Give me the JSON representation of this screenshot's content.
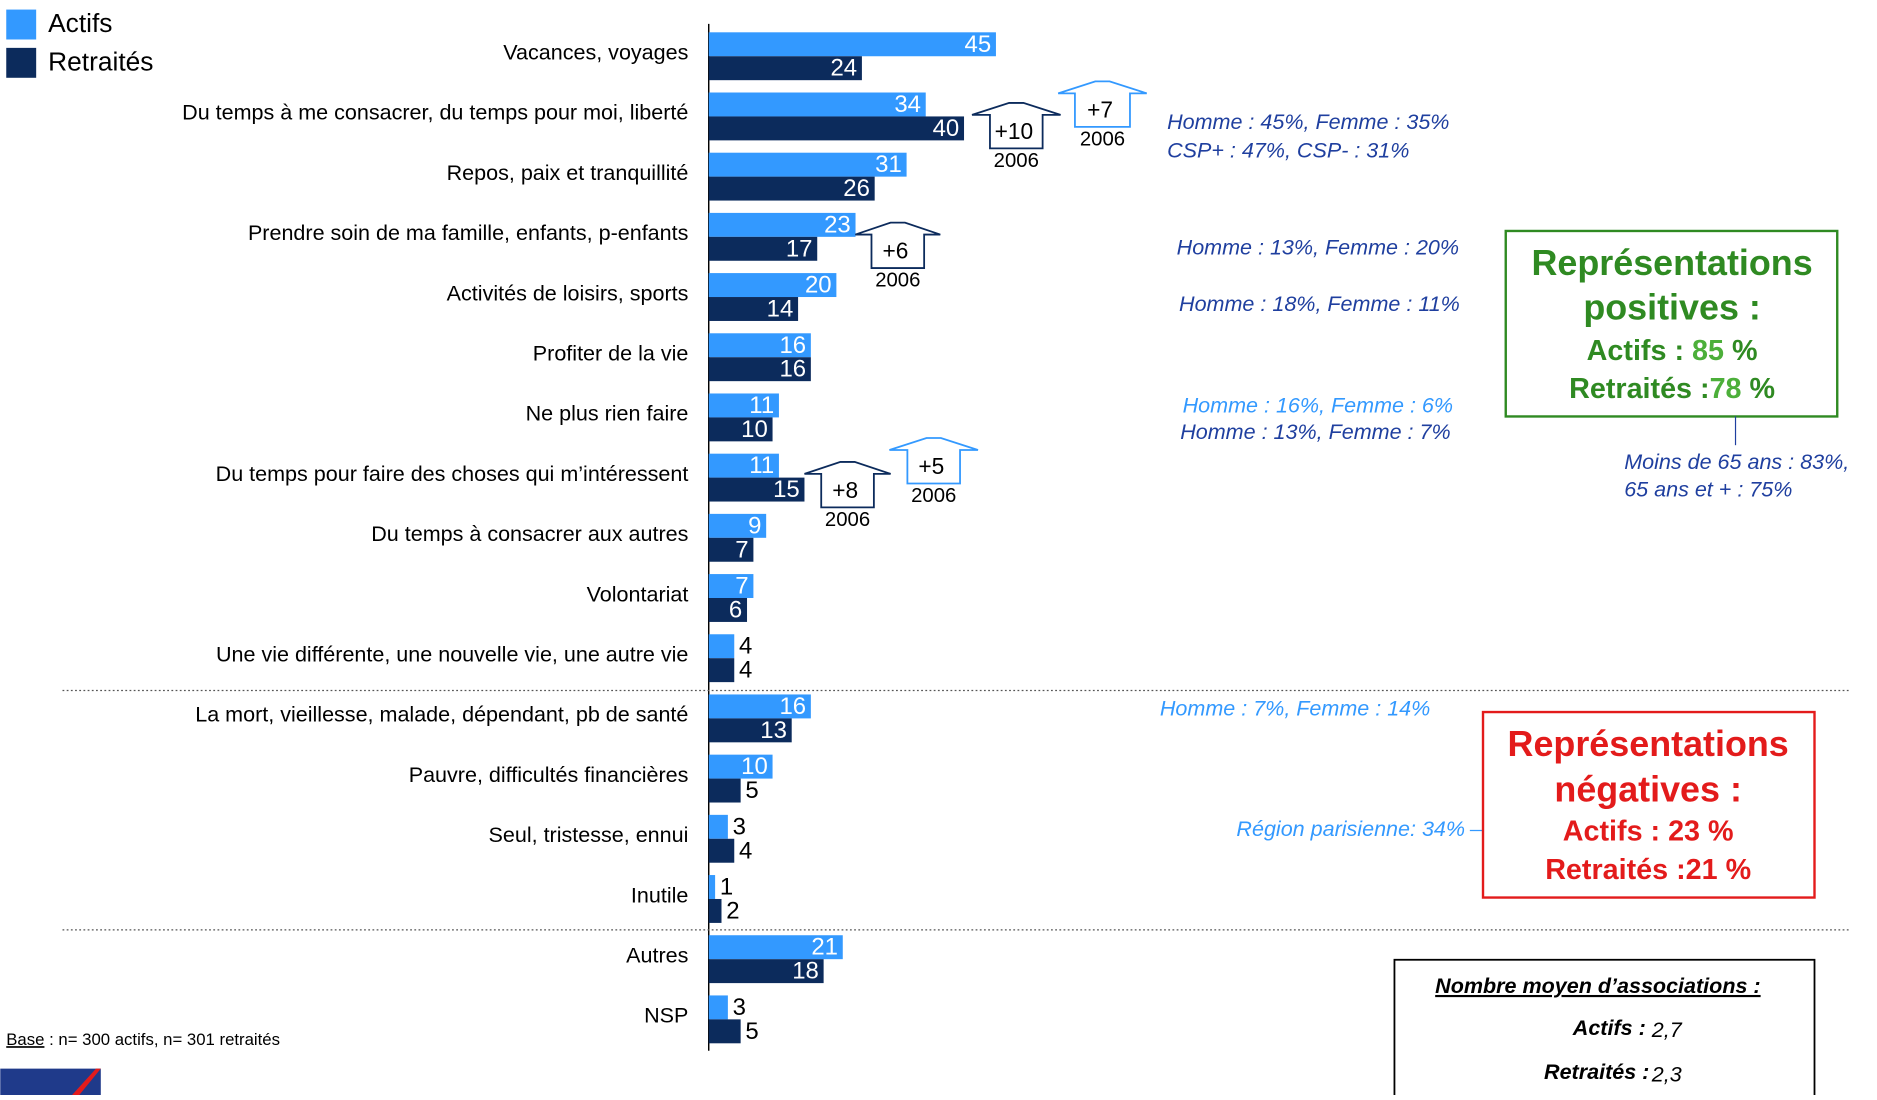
{
  "chart_data": {
    "type": "bar",
    "orientation": "horizontal",
    "categories": [
      "Vacances, voyages",
      "Du temps à me consacrer, du temps pour moi, liberté",
      "Repos, paix et tranquillité",
      "Prendre soin de ma famille, enfants, p-enfants",
      "Activités de loisirs, sports",
      "Profiter de la vie",
      "Ne plus rien faire",
      "Du temps pour faire des choses qui m’intéressent",
      "Du temps à consacrer aux autres",
      "Volontariat",
      "Une vie différente, une nouvelle vie, une autre vie",
      "La mort, vieillesse, malade, dépendant, pb de santé",
      "Pauvre, difficultés financières",
      "Seul, tristesse, ennui",
      "Inutile",
      "Autres",
      "NSP"
    ],
    "series": [
      {
        "name": "Actifs",
        "color": "#3399ff",
        "values": [
          45,
          34,
          31,
          23,
          20,
          16,
          11,
          11,
          9,
          7,
          4,
          16,
          10,
          3,
          1,
          21,
          3
        ]
      },
      {
        "name": "Retraités",
        "color": "#0c2b5c",
        "values": [
          24,
          40,
          26,
          17,
          14,
          16,
          10,
          15,
          7,
          6,
          4,
          13,
          5,
          4,
          2,
          18,
          5
        ]
      }
    ],
    "legend": "top-left",
    "arrows": [
      {
        "label": "+10",
        "year": "2006",
        "color": "#0c2b5c"
      },
      {
        "label": "+7",
        "year": "2006",
        "color": "#3399ff"
      },
      {
        "label": "+6",
        "year": "2006",
        "color": "#0c2b5c"
      },
      {
        "label": "+8",
        "year": "2006",
        "color": "#0c2b5c"
      },
      {
        "label": "+5",
        "year": "2006",
        "color": "#3399ff"
      }
    ],
    "notes": [
      "Homme : 45%, Femme : 35%",
      "CSP+ : 47%, CSP- : 31%",
      "Homme : 13%, Femme : 20%",
      "Homme : 18%, Femme : 11%",
      "Homme : 16%, Femme : 6%",
      "Homme : 13%, Femme : 7%",
      "Moins de 65 ans : 83%,",
      "65 ans et + : 75%",
      "Homme : 7%, Femme : 14%",
      "Région parisienne: 34%"
    ],
    "positive_box": {
      "title1": "Représentations",
      "title2": "positives :",
      "actifs_label": "Actifs :",
      "actifs_value": "85",
      "actifs_unit": "%",
      "retraites_label": "Retraités :",
      "retraites_value": "78",
      "retraites_unit": "%"
    },
    "negative_box": {
      "title1": "Représentations",
      "title2": "négatives :",
      "actifs": "Actifs : 23 %",
      "retraites": "Retraités :21 %"
    },
    "average_box": {
      "title": "Nombre moyen d’associations :",
      "actifs_label": "Actifs :",
      "actifs_value": "2,7",
      "retraites_label": "Retraités :",
      "retraites_value": "2,3"
    },
    "base": {
      "label": "Base",
      "text": ": n= 300 actifs, n= 301 retraités"
    }
  }
}
